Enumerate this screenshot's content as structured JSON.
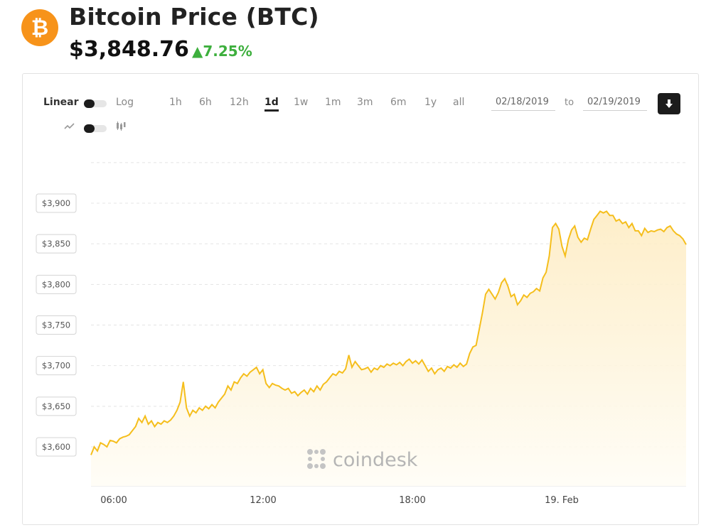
{
  "header": {
    "coin_symbol": "₿",
    "title": "Bitcoin Price (BTC)",
    "price": "$3,848.76",
    "change": "▲7.25%"
  },
  "toolbar": {
    "scale_linear": "Linear",
    "scale_log": "Log",
    "chart_style_line": "line-chart-icon",
    "chart_style_candle": "candlestick-icon",
    "ranges": [
      "1h",
      "6h",
      "12h",
      "1d",
      "1w",
      "1m",
      "3m",
      "6m",
      "1y",
      "all"
    ],
    "active_range": "1d",
    "date_from": "02/18/2019",
    "to_label": "to",
    "date_to": "02/19/2019",
    "download_icon": "download-icon"
  },
  "watermark": "coindesk",
  "colors": {
    "bitcoin_orange": "#F7931A",
    "line": "#F5BE1C",
    "area": "#FEF3D6",
    "positive": "#3DAF3D"
  },
  "chart_data": {
    "type": "area",
    "title": "",
    "xlabel": "",
    "ylabel": "",
    "x_ticks": [
      "06:00",
      "12:00",
      "18:00",
      "19. Feb"
    ],
    "y_ticks": [
      "$3,600",
      "$3,650",
      "$3,700",
      "$3,750",
      "$3,800",
      "$3,850",
      "$3,900"
    ],
    "ylim": [
      3575,
      3960
    ],
    "grid": true,
    "series": [
      {
        "values": [
          3590,
          3600,
          3595,
          3605,
          3603,
          3600,
          3608,
          3607,
          3605,
          3610,
          3612,
          3613,
          3615,
          3620,
          3625,
          3635,
          3630,
          3638,
          3628,
          3632,
          3625,
          3630,
          3628,
          3632,
          3630,
          3633,
          3638,
          3645,
          3655,
          3680,
          3648,
          3638,
          3645,
          3642,
          3648,
          3645,
          3650,
          3647,
          3652,
          3648,
          3655,
          3660,
          3665,
          3675,
          3670,
          3680,
          3678,
          3685,
          3690,
          3687,
          3692,
          3695,
          3698,
          3690,
          3695,
          3678,
          3673,
          3678,
          3676,
          3675,
          3672,
          3670,
          3672,
          3666,
          3668,
          3663,
          3667,
          3670,
          3665,
          3672,
          3668,
          3675,
          3670,
          3677,
          3680,
          3685,
          3690,
          3688,
          3693,
          3691,
          3696,
          3713,
          3698,
          3705,
          3700,
          3695,
          3696,
          3698,
          3692,
          3697,
          3695,
          3700,
          3698,
          3702,
          3700,
          3703,
          3701,
          3704,
          3700,
          3705,
          3708,
          3703,
          3706,
          3702,
          3707,
          3700,
          3693,
          3697,
          3690,
          3695,
          3697,
          3693,
          3699,
          3697,
          3701,
          3698,
          3703,
          3699,
          3702,
          3715,
          3723,
          3725,
          3745,
          3765,
          3788,
          3794,
          3788,
          3782,
          3790,
          3802,
          3807,
          3798,
          3785,
          3788,
          3775,
          3780,
          3787,
          3784,
          3789,
          3791,
          3795,
          3792,
          3808,
          3815,
          3835,
          3870,
          3875,
          3868,
          3847,
          3835,
          3855,
          3867,
          3872,
          3858,
          3852,
          3857,
          3855,
          3868,
          3880,
          3885,
          3890,
          3888,
          3890,
          3885,
          3885,
          3878,
          3880,
          3875,
          3877,
          3870,
          3875,
          3866,
          3866,
          3860,
          3869,
          3864,
          3866,
          3865,
          3867,
          3868,
          3865,
          3870,
          3872,
          3866,
          3862,
          3860,
          3856,
          3849
        ]
      }
    ]
  }
}
